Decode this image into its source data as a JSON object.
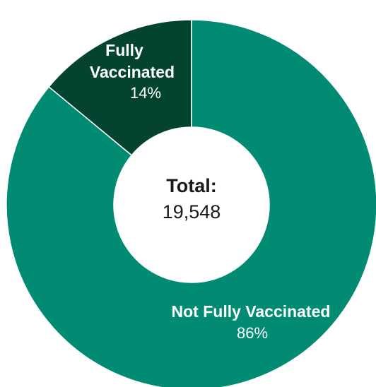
{
  "chart_data": {
    "type": "pie",
    "variant": "donut",
    "categories": [
      "Fully Vaccinated",
      "Not Fully Vaccinated"
    ],
    "values": [
      14,
      86
    ],
    "value_labels": [
      "14%",
      "86%"
    ],
    "colors": [
      "#03432f",
      "#008b72"
    ],
    "center": {
      "title": "Total:",
      "value": "19,548"
    },
    "slices": [
      {
        "name_lines": [
          "Fully",
          "Vaccinated"
        ],
        "pct": "14%"
      },
      {
        "name_lines": [
          "Not Fully Vaccinated"
        ],
        "pct": "86%"
      }
    ]
  }
}
